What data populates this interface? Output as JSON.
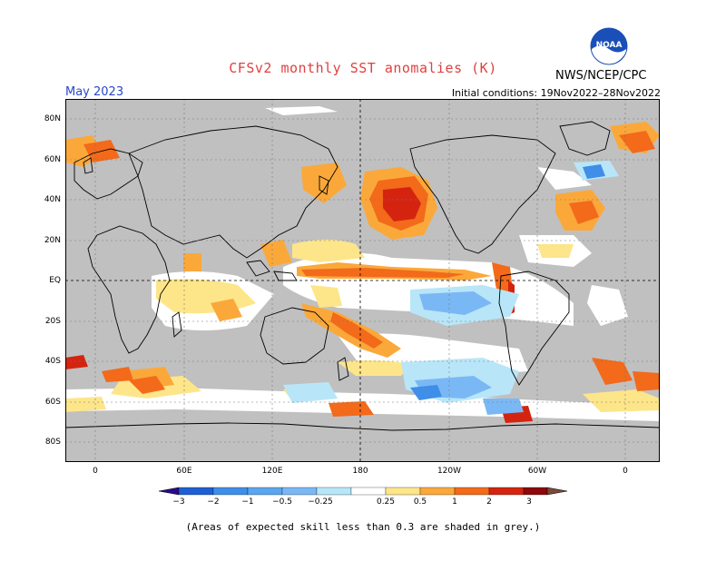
{
  "title": "CFSv2 monthly SST anomalies (K)",
  "month": "May 2023",
  "initial_conditions": "Initial conditions: 19Nov2022–28Nov2022",
  "agency": "NWS/NCEP/CPC",
  "logo_text": "NOAA",
  "note": "(Areas of expected skill less than 0.3 are shaded in grey.)",
  "lat_labels": [
    "80N",
    "60N",
    "40N",
    "20N",
    "EQ",
    "20S",
    "40S",
    "60S",
    "80S"
  ],
  "lon_labels": [
    "0",
    "60E",
    "120E",
    "180",
    "120W",
    "60W",
    "0"
  ],
  "colorbar": {
    "labels": [
      "−3",
      "−2",
      "−1",
      "−0.5",
      "−0.25",
      "0.25",
      "0.5",
      "1",
      "2",
      "3"
    ],
    "colors": [
      "#2a0a8c",
      "#1f5fd4",
      "#3f8ee8",
      "#7ab8f5",
      "#b8e6f8",
      "#ffffff",
      "#fde58a",
      "#fba83a",
      "#f26a1a",
      "#d42410",
      "#8c0a0a",
      "#7a4a3a"
    ]
  },
  "colors": {
    "land": "#c0c0c0",
    "title": "#e04040",
    "month": "#2848c8"
  }
}
